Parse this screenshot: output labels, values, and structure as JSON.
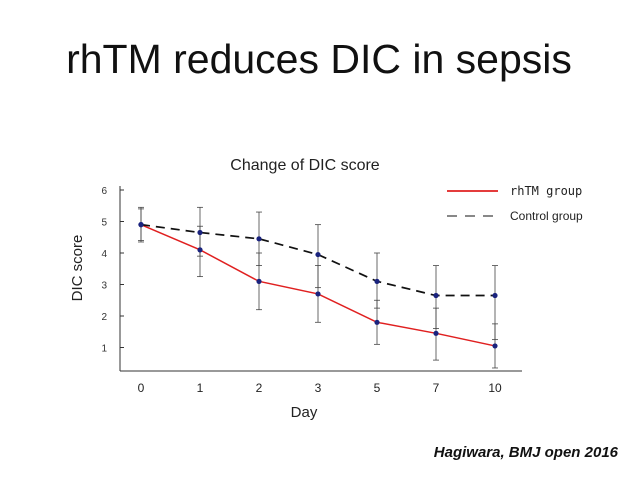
{
  "slide": {
    "title": "rhTM reduces DIC in sepsis",
    "citation": "Hagiwara, BMJ open 2016"
  },
  "chart_data": {
    "type": "line",
    "title": "Change of DIC score",
    "xlabel": "Day",
    "ylabel": "DIC score",
    "categories": [
      "0",
      "1",
      "2",
      "3",
      "5",
      "7",
      "10"
    ],
    "yticks": [
      1,
      2,
      3,
      4,
      5,
      6
    ],
    "ylim": [
      0,
      6.2
    ],
    "grid": false,
    "legend_position": "top-right",
    "series": [
      {
        "name": "rhTM group",
        "style": "solid",
        "color": "#e02020",
        "values": [
          4.9,
          4.1,
          3.1,
          2.7,
          1.8,
          1.45,
          1.05
        ],
        "err_low": [
          0.5,
          0.85,
          0.9,
          0.9,
          0.7,
          0.85,
          0.7
        ],
        "err_high": [
          0.5,
          0.75,
          0.9,
          0.9,
          0.7,
          0.8,
          0.7
        ]
      },
      {
        "name": "Control group",
        "style": "dashed",
        "color": "#111111",
        "values": [
          4.9,
          4.65,
          4.45,
          3.95,
          3.1,
          2.65,
          2.65
        ],
        "err_low": [
          0.55,
          0.75,
          0.85,
          1.05,
          0.85,
          1.05,
          1.4
        ],
        "err_high": [
          0.55,
          0.8,
          0.85,
          0.95,
          0.9,
          0.95,
          0.95
        ]
      }
    ],
    "marker_color": "#1a237e"
  }
}
